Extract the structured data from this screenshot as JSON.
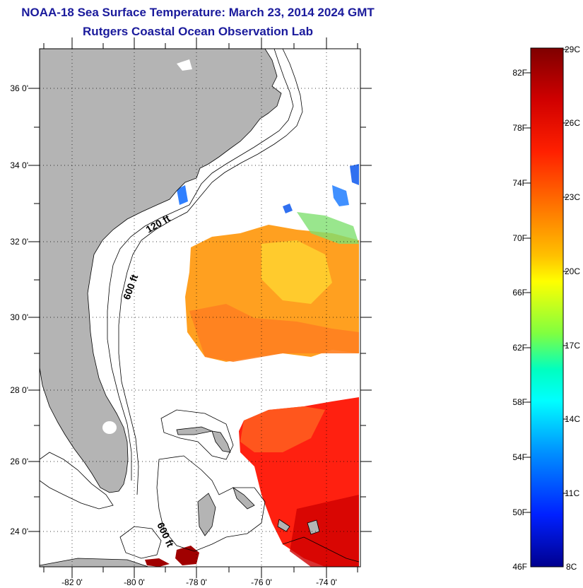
{
  "header": {
    "title": "NOAA-18 Sea Surface Temperature:  March 23, 2014 2024 GMT",
    "subtitle": "Rutgers Coastal Ocean Observation Lab"
  },
  "map": {
    "lat_labels": [
      "36 0'",
      "34 0'",
      "32 0'",
      "30 0'",
      "28 0'",
      "26 0'",
      "24 0'"
    ],
    "lon_labels": [
      "-82 0'",
      "-80 0'",
      "-78 0'",
      "-76 0'",
      "-74 0'"
    ],
    "contour_labels": [
      "120 ft",
      "600 ft",
      "600 ft"
    ],
    "colors": {
      "land": "#b4b4b4",
      "ocean": "#ffffff"
    }
  },
  "colorbar": {
    "fahrenheit_labels": [
      "82F",
      "78F",
      "74F",
      "70F",
      "66F",
      "62F",
      "58F",
      "54F",
      "50F",
      "46F"
    ],
    "celsius_labels": [
      "29C",
      "26C",
      "23C",
      "20C",
      "17C",
      "14C",
      "11C",
      "8C"
    ],
    "colors": [
      "#7f0000",
      "#ff0000",
      "#ff8000",
      "#ffff00",
      "#80ff80",
      "#00ffff",
      "#0080ff",
      "#0000ff",
      "#00008f"
    ]
  }
}
